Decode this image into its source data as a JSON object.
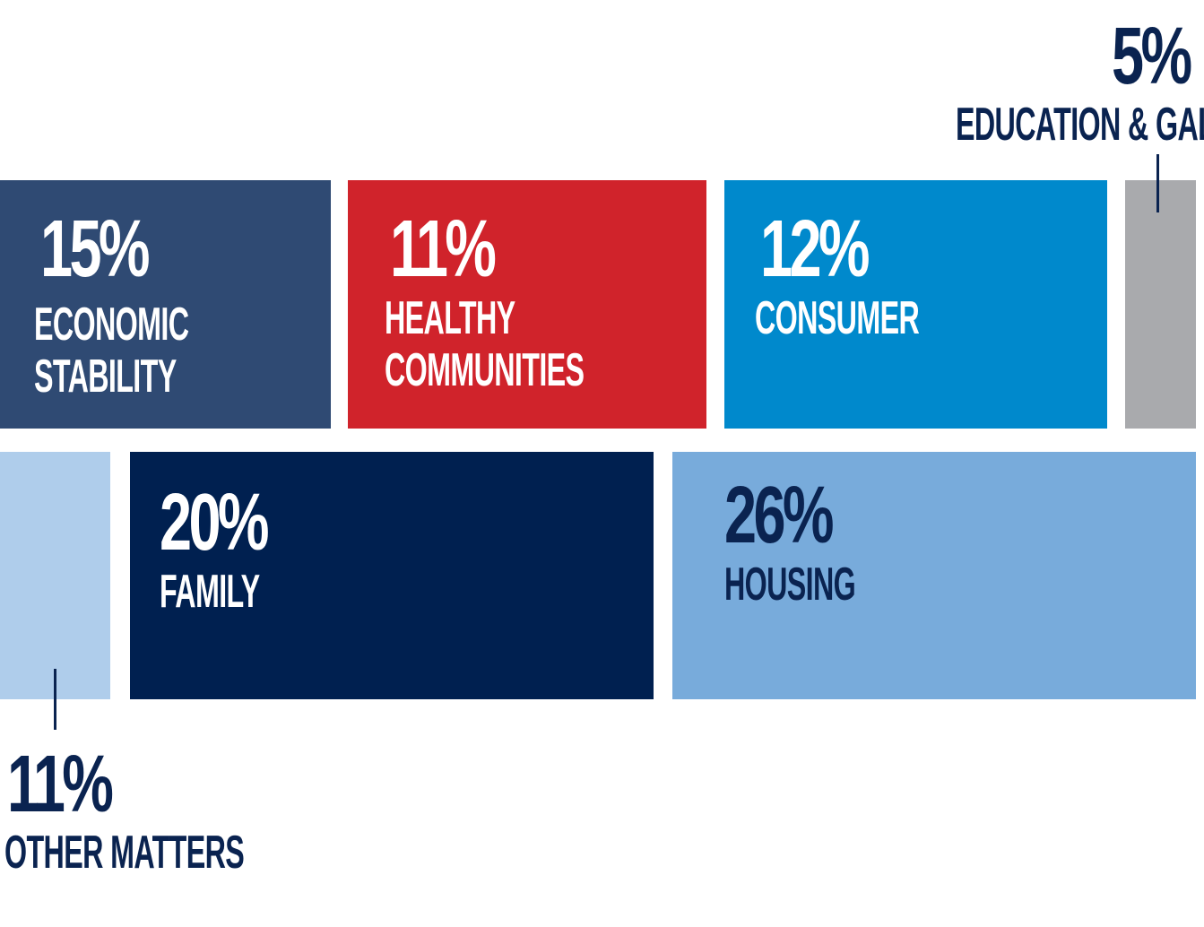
{
  "chart_data": {
    "type": "treemap",
    "categories": [
      "Economic Stability",
      "Healthy Communities",
      "Consumer",
      "Education & GAL",
      "Other Matters",
      "Family",
      "Housing"
    ],
    "segments": [
      {
        "key": "economic",
        "value": 15,
        "value_label": "15%",
        "label_lines": [
          "ECONOMIC",
          "STABILITY"
        ],
        "color": "#2f4a73"
      },
      {
        "key": "healthy",
        "value": 11,
        "value_label": "11%",
        "label_lines": [
          "HEALTHY",
          "COMMUNITIES"
        ],
        "color": "#d0232b"
      },
      {
        "key": "consumer",
        "value": 12,
        "value_label": "12%",
        "label_lines": [
          "CONSUMER"
        ],
        "color": "#0089cc"
      },
      {
        "key": "education",
        "value": 5,
        "value_label": "5%",
        "label_lines": [
          "EDUCATION & GAL"
        ],
        "color": "#a9aaad"
      },
      {
        "key": "other",
        "value": 11,
        "value_label": "11%",
        "label_lines": [
          "OTHER MATTERS"
        ],
        "color": "#afcdeb"
      },
      {
        "key": "family",
        "value": 20,
        "value_label": "20%",
        "label_lines": [
          "FAMILY"
        ],
        "color": "#002050"
      },
      {
        "key": "housing",
        "value": 26,
        "value_label": "26%",
        "label_lines": [
          "HOUSING"
        ],
        "color": "#78abdb"
      }
    ],
    "title": "",
    "legend": "none"
  }
}
